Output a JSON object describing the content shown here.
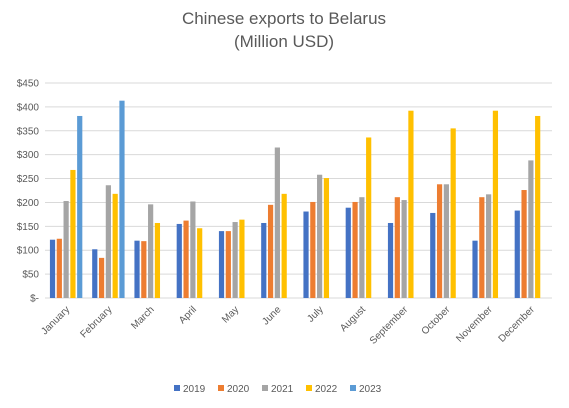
{
  "chart_data": {
    "type": "bar",
    "title_lines": [
      "Chinese exports to Belarus",
      "(Million USD)"
    ],
    "categories": [
      "January",
      "February",
      "March",
      "April",
      "May",
      "June",
      "July",
      "August",
      "September",
      "October",
      "November",
      "December"
    ],
    "series": [
      {
        "name": "2019",
        "color": "#4472c4",
        "values": [
          122,
          102,
          120,
          155,
          140,
          157,
          181,
          189,
          157,
          178,
          120,
          183
        ]
      },
      {
        "name": "2020",
        "color": "#ed7d31",
        "values": [
          124,
          84,
          119,
          162,
          140,
          195,
          201,
          201,
          211,
          238,
          211,
          226
        ]
      },
      {
        "name": "2021",
        "color": "#a5a5a5",
        "values": [
          203,
          236,
          196,
          202,
          159,
          315,
          258,
          211,
          205,
          238,
          217,
          288
        ]
      },
      {
        "name": "2022",
        "color": "#ffc000",
        "values": [
          268,
          218,
          157,
          146,
          164,
          218,
          251,
          336,
          392,
          355,
          392,
          381
        ]
      },
      {
        "name": "2023",
        "color": "#5b9bd5",
        "values": [
          381,
          413,
          null,
          null,
          null,
          null,
          null,
          null,
          null,
          null,
          null,
          null
        ]
      }
    ],
    "ylim": [
      0,
      450
    ],
    "yticks": [
      0,
      50,
      100,
      150,
      200,
      250,
      300,
      350,
      400,
      450
    ],
    "ytick_labels": [
      "$-",
      "$50",
      "$100",
      "$150",
      "$200",
      "$250",
      "$300",
      "$350",
      "$400",
      "$450"
    ],
    "grid": true,
    "legend_position": "bottom"
  }
}
